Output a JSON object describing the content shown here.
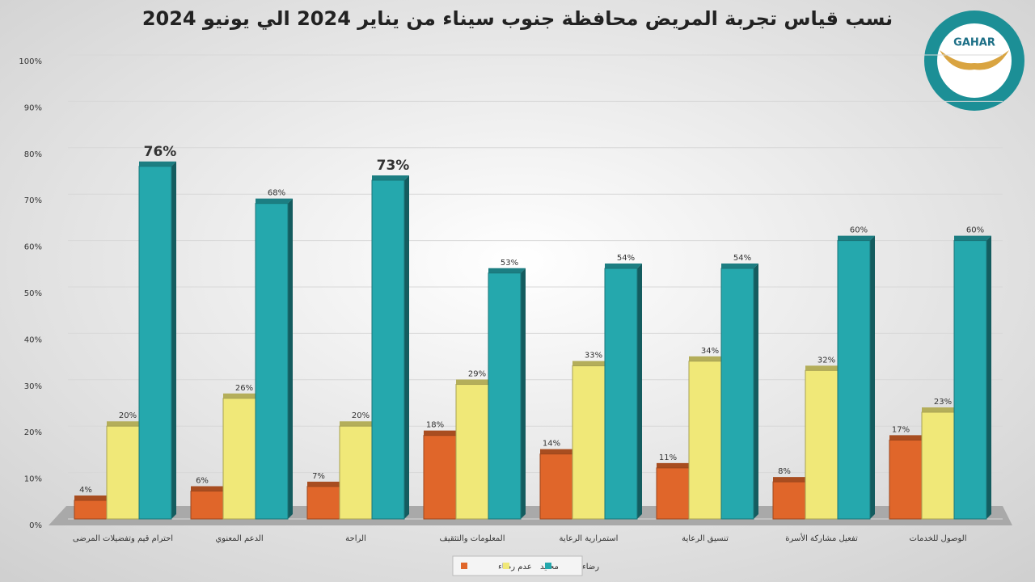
{
  "chart_data": {
    "type": "bar3d",
    "title": "نسب قياس تجربة المريض محافظة جنوب سيناء من يناير  2024 الي يونيو 2024",
    "logo": "GAHAR",
    "categories": [
      "احترام قيم وتفضيلات المرضى",
      "الدعم المعنوي",
      "الراحة",
      "المعلومات والتثقيف",
      "استمرارية الرعاية",
      "تنسيق الرعاية",
      "تفعيل مشاركة الأسرة",
      "الوصول للخدمات"
    ],
    "series": [
      {
        "name": "عدم رضاء",
        "color": "#e0662a",
        "values": [
          4,
          6,
          7,
          18,
          14,
          11,
          8,
          17
        ],
        "value_labels": [
          "4%",
          "6%",
          "7%",
          "18%",
          "14%",
          "11%",
          "8%",
          "17%"
        ]
      },
      {
        "name": "محايد",
        "color": "#f0e878",
        "values": [
          20,
          26,
          20,
          29,
          33,
          34,
          32,
          23
        ],
        "value_labels": [
          "20%",
          "26%",
          "20%",
          "29%",
          "33%",
          "34%",
          "32%",
          "23%"
        ]
      },
      {
        "name": "رضاء",
        "color": "#25a8ad",
        "values": [
          76,
          68,
          73,
          53,
          54,
          54,
          60,
          60
        ],
        "value_labels": [
          "76%",
          "68%",
          "73%",
          "53%",
          "54%",
          "54%",
          "60%",
          "60%"
        ]
      }
    ],
    "ylim": [
      0,
      100
    ],
    "yticks": [
      {
        "value": 0,
        "label": "0%"
      },
      {
        "value": 10,
        "label": "10%"
      },
      {
        "value": 20,
        "label": "20%"
      },
      {
        "value": 30,
        "label": "30%"
      },
      {
        "value": 40,
        "label": "40%"
      },
      {
        "value": 50,
        "label": "50%"
      },
      {
        "value": 60,
        "label": "60%"
      },
      {
        "value": 70,
        "label": "70%"
      },
      {
        "value": 80,
        "label": "80%"
      },
      {
        "value": 90,
        "label": "90%"
      },
      {
        "value": 100,
        "label": "100%"
      }
    ],
    "grid": true,
    "legend": "bottom"
  }
}
